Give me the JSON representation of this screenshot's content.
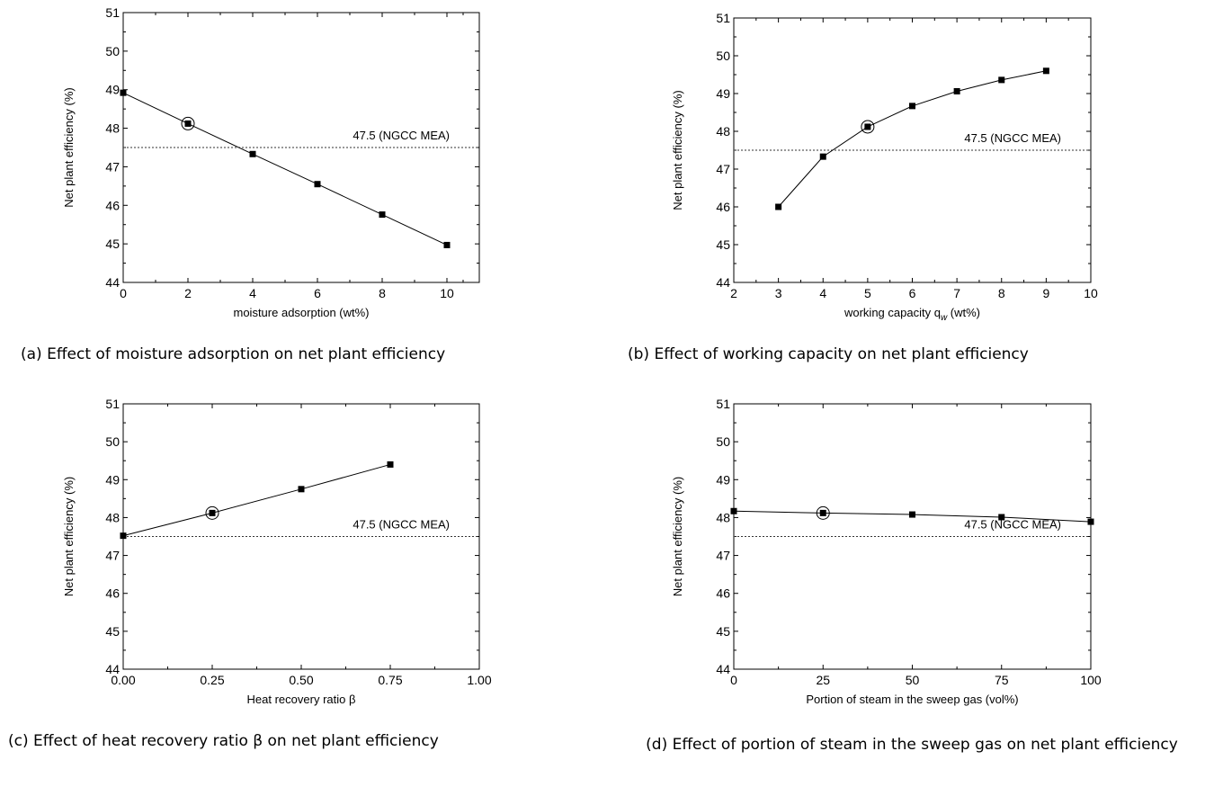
{
  "chart_data": [
    {
      "id": "a",
      "type": "line",
      "caption": "(a) Effect of moisture adsorption on net plant efficiency",
      "xlabel": "moisture adsorption (wt%)",
      "ylabel": "Net plant efficiency (%)",
      "xlim": [
        0,
        11
      ],
      "ylim": [
        44,
        51
      ],
      "xticks": [
        0,
        2,
        4,
        6,
        8,
        10
      ],
      "xtick_labels": [
        "0",
        "2",
        "4",
        "6",
        "8",
        "10"
      ],
      "yticks": [
        44,
        45,
        46,
        47,
        48,
        49,
        50,
        51
      ],
      "ytick_labels": [
        "44",
        "45",
        "46",
        "47",
        "48",
        "49",
        "50",
        "51"
      ],
      "reference": {
        "y": 47.5,
        "label": "47.5 (NGCC MEA)"
      },
      "series": [
        {
          "x": [
            0,
            2,
            4,
            6,
            8,
            10
          ],
          "y": [
            48.92,
            48.12,
            47.33,
            46.55,
            45.76,
            44.97
          ]
        }
      ],
      "highlight": {
        "x": 2,
        "y": 48.12
      }
    },
    {
      "id": "b",
      "type": "line",
      "caption": "(b) Effect of working capacity on net plant efficiency",
      "xlabel": "working capacity q",
      "xlabel_sub": "w",
      "xlabel_suffix": " (wt%)",
      "ylabel": "Net plant efficiency (%)",
      "xlim": [
        2,
        10
      ],
      "ylim": [
        44,
        51
      ],
      "xticks": [
        2,
        3,
        4,
        5,
        6,
        7,
        8,
        9,
        10
      ],
      "xtick_labels": [
        "2",
        "3",
        "4",
        "5",
        "6",
        "7",
        "8",
        "9",
        "10"
      ],
      "yticks": [
        44,
        45,
        46,
        47,
        48,
        49,
        50,
        51
      ],
      "ytick_labels": [
        "44",
        "45",
        "46",
        "47",
        "48",
        "49",
        "50",
        "51"
      ],
      "reference": {
        "y": 47.5,
        "label": "47.5 (NGCC MEA)"
      },
      "series": [
        {
          "x": [
            3,
            4,
            5,
            6,
            7,
            8,
            9
          ],
          "y": [
            46.0,
            47.33,
            48.12,
            48.67,
            49.06,
            49.36,
            49.6
          ]
        }
      ],
      "highlight": {
        "x": 5,
        "y": 48.12
      }
    },
    {
      "id": "c",
      "type": "line",
      "caption": "(c) Effect of heat recovery ratio β on net plant efficiency",
      "xlabel": "Heat recovery ratio β",
      "ylabel": "Net plant efficiency (%)",
      "xlim": [
        0,
        1
      ],
      "ylim": [
        44,
        51
      ],
      "xticks": [
        0,
        0.25,
        0.5,
        0.75,
        1.0
      ],
      "xtick_labels": [
        "0.00",
        "0.25",
        "0.50",
        "0.75",
        "1.00"
      ],
      "yticks": [
        44,
        45,
        46,
        47,
        48,
        49,
        50,
        51
      ],
      "ytick_labels": [
        "44",
        "45",
        "46",
        "47",
        "48",
        "49",
        "50",
        "51"
      ],
      "reference": {
        "y": 47.5,
        "label": "47.5 (NGCC MEA)"
      },
      "series": [
        {
          "x": [
            0,
            0.25,
            0.5,
            0.75
          ],
          "y": [
            47.52,
            48.12,
            48.75,
            49.4
          ]
        }
      ],
      "highlight": {
        "x": 0.25,
        "y": 48.12
      }
    },
    {
      "id": "d",
      "type": "line",
      "caption": "(d) Effect of portion of steam in the sweep gas on net plant efficiency",
      "xlabel": "Portion of steam in the sweep gas (vol%)",
      "ylabel": "Net plant efficiency (%)",
      "xlim": [
        0,
        100
      ],
      "ylim": [
        44,
        51
      ],
      "xticks": [
        0,
        25,
        50,
        75,
        100
      ],
      "xtick_labels": [
        "0",
        "25",
        "50",
        "75",
        "100"
      ],
      "yticks": [
        44,
        45,
        46,
        47,
        48,
        49,
        50,
        51
      ],
      "ytick_labels": [
        "44",
        "45",
        "46",
        "47",
        "48",
        "49",
        "50",
        "51"
      ],
      "reference": {
        "y": 47.5,
        "label": "47.5 (NGCC MEA)"
      },
      "series": [
        {
          "x": [
            0,
            25,
            50,
            75,
            100
          ],
          "y": [
            48.17,
            48.12,
            48.08,
            48.01,
            47.89
          ]
        }
      ],
      "highlight": {
        "x": 25,
        "y": 48.12
      }
    }
  ]
}
